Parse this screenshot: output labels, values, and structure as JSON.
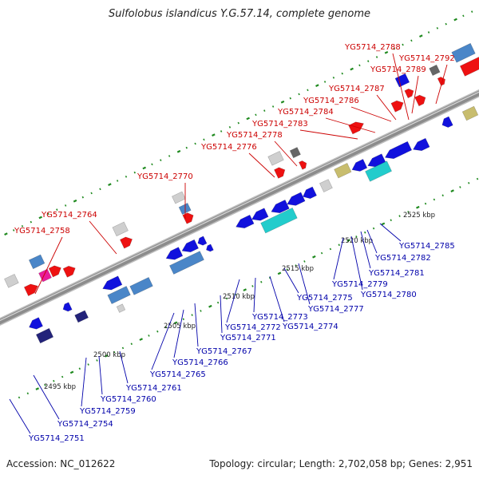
{
  "title": "Sulfolobus islandicus Y.G.57.14, complete genome",
  "footer": {
    "accession": "Accession: NC_012622",
    "summary": "Topology: circular; Length: 2,702,058 bp; Genes: 2,951"
  },
  "colors": {
    "forward_label": "#cc0000",
    "reverse_label": "#0000aa",
    "backbone": "#8c8c8c",
    "tick": "#1f8a1f",
    "gene_red": "#ee1111",
    "gene_blue": "#1111dd",
    "gene_steel": "#4a86c8",
    "gene_cyan": "#22cccc",
    "gene_gray": "#cfcfcf",
    "gene_olive": "#c8bd6e",
    "gene_navy": "#23237a",
    "gene_magenta": "#e81c9c",
    "gene_darkgray": "#666666"
  },
  "kbp_marks": [
    {
      "label": "2495 kbp",
      "pos": 2495
    },
    {
      "label": "2500 kbp",
      "pos": 2500
    },
    {
      "label": "2505 kbp",
      "pos": 2505
    },
    {
      "label": "2510 kbp",
      "pos": 2510
    },
    {
      "label": "2515 kbp",
      "pos": 2515
    },
    {
      "label": "2520 kbp",
      "pos": 2520
    },
    {
      "label": "2525 kbp",
      "pos": 2525
    }
  ],
  "forward_labels": [
    "YG5714_2758",
    "YG5714_2764",
    "YG5714_2770",
    "YG5714_2776",
    "YG5714_2778",
    "YG5714_2783",
    "YG5714_2784",
    "YG5714_2786",
    "YG5714_2787",
    "YG5714_2788",
    "YG5714_2789",
    "YG5714_2792"
  ],
  "reverse_labels": [
    "YG5714_2751",
    "YG5714_2754",
    "YG5714_2759",
    "YG5714_2760",
    "YG5714_2761",
    "YG5714_2765",
    "YG5714_2766",
    "YG5714_2767",
    "YG5714_2771",
    "YG5714_2772",
    "YG5714_2773",
    "YG5714_2774",
    "YG5714_2775",
    "YG5714_2777",
    "YG5714_2779",
    "YG5714_2780",
    "YG5714_2781",
    "YG5714_2782",
    "YG5714_2785"
  ]
}
